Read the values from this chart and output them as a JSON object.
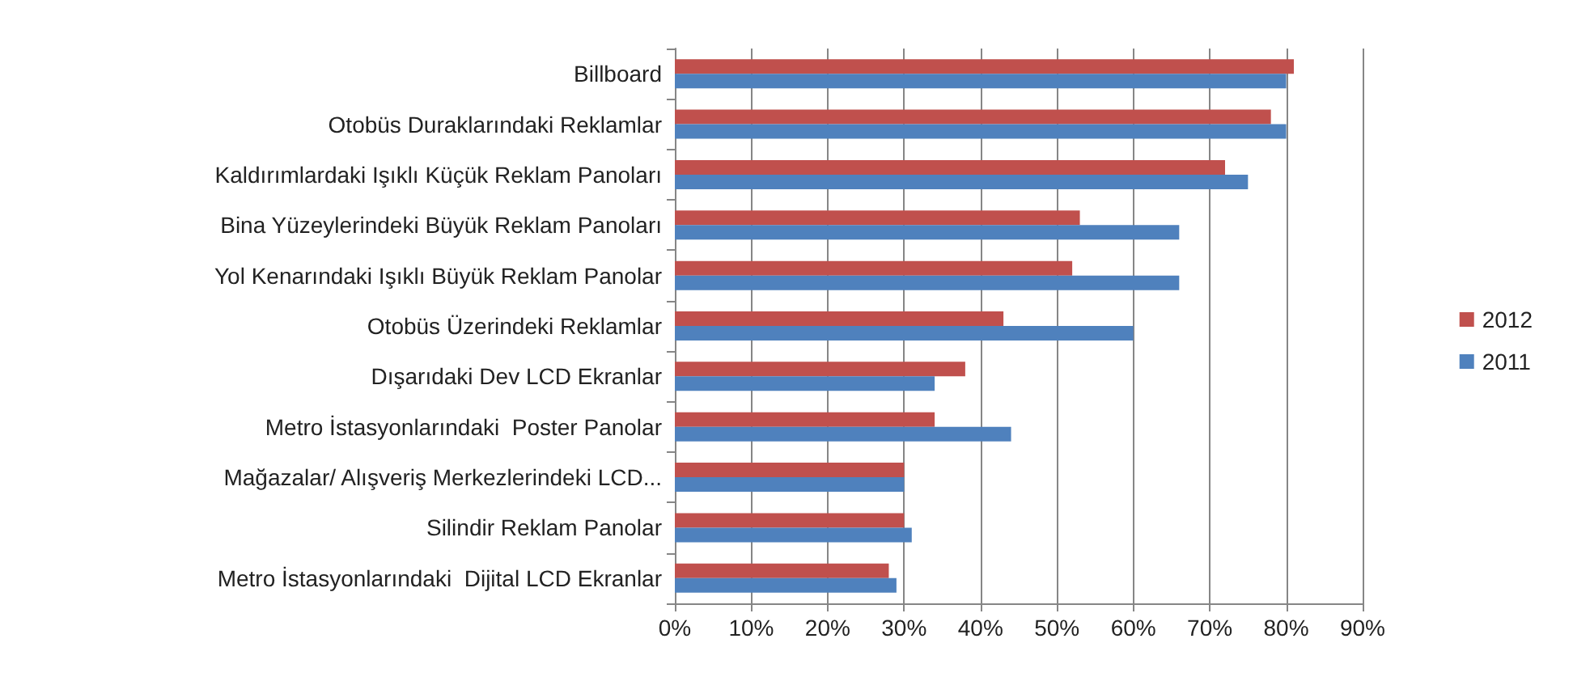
{
  "chart_data": {
    "type": "bar",
    "orientation": "horizontal",
    "categories": [
      "Billboard",
      "Otobüs Duraklarındaki Reklamlar",
      "Kaldırımlardaki Işıklı Küçük Reklam Panoları",
      "Bina Yüzeylerindeki Büyük Reklam Panoları",
      "Yol Kenarındaki Işıklı Büyük Reklam Panolar",
      "Otobüs Üzerindeki Reklamlar",
      "Dışarıdaki Dev LCD Ekranlar",
      "Metro İstasyonlarındaki  Poster Panolar",
      "Mağazalar/ Alışveriş Merkezlerindeki LCD...",
      "Silindir Reklam Panolar",
      "Metro İstasyonlarındaki  Dijital LCD Ekranlar"
    ],
    "series": [
      {
        "name": "2012",
        "color": "#c0504d",
        "values": [
          81,
          78,
          72,
          53,
          52,
          43,
          38,
          34,
          30,
          30,
          28
        ]
      },
      {
        "name": "2011",
        "color": "#4f81bd",
        "values": [
          80,
          80,
          75,
          66,
          66,
          60,
          34,
          44,
          30,
          31,
          29
        ]
      }
    ],
    "xlim": [
      0,
      90
    ],
    "xticks": [
      {
        "value": 0,
        "label": "0%"
      },
      {
        "value": 10,
        "label": "10%"
      },
      {
        "value": 20,
        "label": "20%"
      },
      {
        "value": 30,
        "label": "30%"
      },
      {
        "value": 40,
        "label": "40%"
      },
      {
        "value": 50,
        "label": "50%"
      },
      {
        "value": 60,
        "label": "60%"
      },
      {
        "value": 70,
        "label": "70%"
      },
      {
        "value": 80,
        "label": "80%"
      },
      {
        "value": 90,
        "label": "90%"
      }
    ],
    "grid": "x",
    "legend": "right"
  }
}
